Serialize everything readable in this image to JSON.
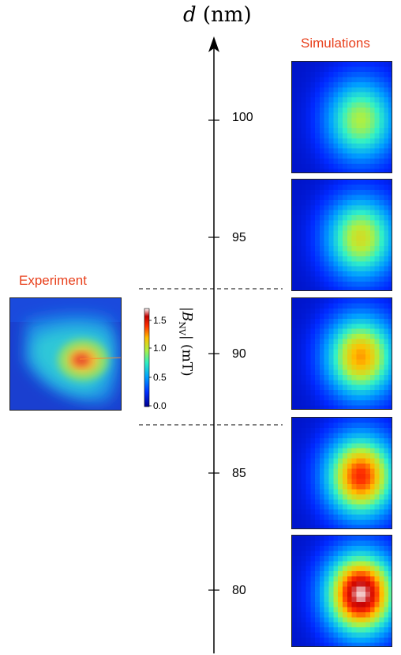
{
  "axis": {
    "variable": "d",
    "unit": "(nm)",
    "ticks": [
      {
        "value": "100"
      },
      {
        "value": "95"
      },
      {
        "value": "90"
      },
      {
        "value": "85"
      },
      {
        "value": "80"
      }
    ]
  },
  "experiment": {
    "title": "Experiment"
  },
  "simulations": {
    "title": "Simulations",
    "panels": [
      {
        "d": 100,
        "peak_field_mT": 1.0
      },
      {
        "d": 95,
        "peak_field_mT": 1.1
      },
      {
        "d": 90,
        "peak_field_mT": 1.3
      },
      {
        "d": 85,
        "peak_field_mT": 1.5
      },
      {
        "d": 80,
        "peak_field_mT": 1.8
      }
    ]
  },
  "colorbar": {
    "title_symbol": "B",
    "title_subscript": "NV",
    "title_unit": "(mT)",
    "ticks": [
      "1.5",
      "1.0",
      "0.5",
      "0.0"
    ],
    "range_mT": [
      0.0,
      1.8
    ],
    "colormap": "jet"
  },
  "colors": {
    "title_red": "#e8401c",
    "jet_low": "#00008f",
    "jet_high": "#ffffff"
  }
}
